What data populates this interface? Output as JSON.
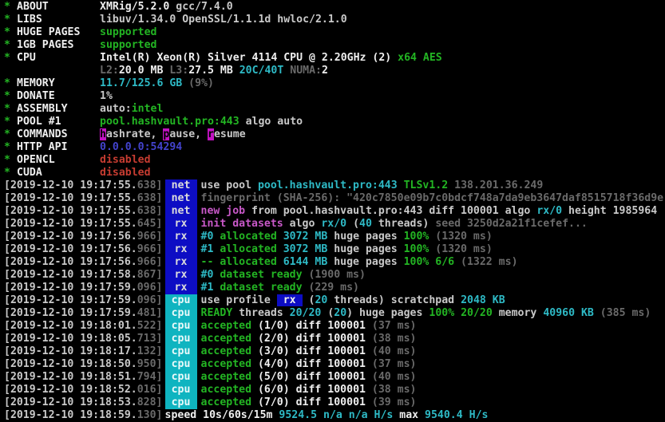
{
  "palette": {
    "bg": "#000000",
    "white": "#c9c9c9",
    "bright": "#efefef",
    "gray": "#6a6a6a",
    "green": "#23b523",
    "cyan": "#2ebac6",
    "magenta": "#c858c8",
    "red": "#c63c31",
    "blue": "#4343cd",
    "tagblue": "#0d0dc4",
    "tagcyan": "#0fb4c0",
    "keybg": "#c213c2"
  },
  "info_lines": [
    {
      "star": "*",
      "label": "ABOUT",
      "segs": [
        [
          "XMRig/5.2.0",
          "b"
        ],
        [
          " gcc/7.4.0",
          "w"
        ]
      ]
    },
    {
      "star": "*",
      "label": "LIBS",
      "segs": [
        [
          "libuv/1.34.0 OpenSSL/1.1.1d hwloc/2.1.0",
          "w"
        ]
      ]
    },
    {
      "star": "*",
      "label": "HUGE PAGES",
      "segs": [
        [
          "supported",
          "gr"
        ]
      ]
    },
    {
      "star": "*",
      "label": "1GB PAGES",
      "segs": [
        [
          "supported",
          "gr"
        ]
      ]
    },
    {
      "star": "*",
      "label": "CPU",
      "segs": [
        [
          "Intel(R) Xeon(R) Silver 4114 CPU @ 2.20GHz (2) ",
          "b"
        ],
        [
          "x64 AES",
          "gr"
        ]
      ]
    },
    {
      "star": "",
      "label": "",
      "segs": [
        [
          "L2:",
          "g"
        ],
        [
          "20.0 MB ",
          "b"
        ],
        [
          "L3:",
          "g"
        ],
        [
          "27.5 MB ",
          "b"
        ],
        [
          "20C/40T ",
          "c"
        ],
        [
          "NUMA:",
          "g"
        ],
        [
          "2",
          "b"
        ]
      ]
    },
    {
      "star": "*",
      "label": "MEMORY",
      "segs": [
        [
          "11.7/125.6 GB ",
          "c"
        ],
        [
          "(9%)",
          "g"
        ]
      ]
    },
    {
      "star": "*",
      "label": "DONATE",
      "segs": [
        [
          "1%",
          "w"
        ]
      ]
    },
    {
      "star": "*",
      "label": "ASSEMBLY",
      "segs": [
        [
          "auto:",
          "w"
        ],
        [
          "intel",
          "gr"
        ]
      ]
    },
    {
      "star": "*",
      "label": "POOL #1",
      "segs": [
        [
          "pool.hashvault.pro:443",
          "gr"
        ],
        [
          " algo auto",
          "w"
        ]
      ]
    },
    {
      "star": "*",
      "label": "COMMANDS",
      "segs": [
        [
          "h",
          "kbg"
        ],
        [
          "ashrate, ",
          "w"
        ],
        [
          "p",
          "kbg"
        ],
        [
          "ause, ",
          "w"
        ],
        [
          "r",
          "kbg"
        ],
        [
          "esume",
          "w"
        ]
      ]
    },
    {
      "star": "*",
      "label": "HTTP API",
      "segs": [
        [
          "0.0.0.0:54294",
          "bl"
        ]
      ]
    },
    {
      "star": "*",
      "label": "OPENCL",
      "segs": [
        [
          "disabled",
          "r"
        ]
      ]
    },
    {
      "star": "*",
      "label": "CUDA",
      "segs": [
        [
          "disabled",
          "r"
        ]
      ]
    }
  ],
  "log_lines": [
    {
      "time": "[2019-12-10 19:17:55.",
      "ms": "638]",
      "tag": "net",
      "tagc": "blue",
      "segs": [
        [
          "use pool ",
          "w"
        ],
        [
          "pool.hashvault.pro:443 ",
          "c"
        ],
        [
          "TLSv1.2 ",
          "gr"
        ],
        [
          "138.201.36.249",
          "g"
        ]
      ]
    },
    {
      "time": "[2019-12-10 19:17:55.",
      "ms": "638]",
      "tag": "net",
      "tagc": "blue",
      "segs": [
        [
          "fingerprint (SHA-256): \"420c7850e09b7c0bdcf748a7da9eb3647daf8515718f36d9e",
          "g"
        ]
      ]
    },
    {
      "time": "[2019-12-10 19:17:55.",
      "ms": "638]",
      "tag": "net",
      "tagc": "blue",
      "segs": [
        [
          "new job ",
          "m"
        ],
        [
          "from pool.hashvault.pro:443 diff 100001 algo ",
          "w"
        ],
        [
          "rx/0",
          "c"
        ],
        [
          " height 1985964",
          "w"
        ]
      ]
    },
    {
      "time": "[2019-12-10 19:17:55.",
      "ms": "645]",
      "tag": "rx",
      "tagc": "blue",
      "segs": [
        [
          "init datasets",
          "m"
        ],
        [
          " algo ",
          "w"
        ],
        [
          "rx/0",
          "c"
        ],
        [
          " (",
          "w"
        ],
        [
          "40",
          "c"
        ],
        [
          " threads) ",
          "w"
        ],
        [
          "seed 3250d2a21f1cefef...",
          "g"
        ]
      ]
    },
    {
      "time": "[2019-12-10 19:17:56.",
      "ms": "966]",
      "tag": "rx",
      "tagc": "blue",
      "segs": [
        [
          "#0",
          "c"
        ],
        [
          " allocated ",
          "gr"
        ],
        [
          "3072 MB",
          "c"
        ],
        [
          " huge pages ",
          "w"
        ],
        [
          "100%",
          "gr"
        ],
        [
          " (1320 ms)",
          "g"
        ]
      ]
    },
    {
      "time": "[2019-12-10 19:17:56.",
      "ms": "966]",
      "tag": "rx",
      "tagc": "blue",
      "segs": [
        [
          "#1",
          "c"
        ],
        [
          " allocated ",
          "gr"
        ],
        [
          "3072 MB",
          "c"
        ],
        [
          " huge pages ",
          "w"
        ],
        [
          "100%",
          "gr"
        ],
        [
          " (1320 ms)",
          "g"
        ]
      ]
    },
    {
      "time": "[2019-12-10 19:17:56.",
      "ms": "966]",
      "tag": "rx",
      "tagc": "blue",
      "segs": [
        [
          "-- allocated ",
          "gr"
        ],
        [
          "6144 MB",
          "c"
        ],
        [
          " huge pages ",
          "w"
        ],
        [
          "100% 6/6",
          "gr"
        ],
        [
          " (1322 ms)",
          "g"
        ]
      ]
    },
    {
      "time": "[2019-12-10 19:17:58.",
      "ms": "867]",
      "tag": "rx",
      "tagc": "blue",
      "segs": [
        [
          "#0",
          "c"
        ],
        [
          " dataset ready ",
          "gr"
        ],
        [
          "(1900 ms)",
          "g"
        ]
      ]
    },
    {
      "time": "[2019-12-10 19:17:59.",
      "ms": "096]",
      "tag": "rx",
      "tagc": "blue",
      "segs": [
        [
          "#1",
          "c"
        ],
        [
          " dataset ready ",
          "gr"
        ],
        [
          "(229 ms)",
          "g"
        ]
      ]
    },
    {
      "time": "[2019-12-10 19:17:59.",
      "ms": "096]",
      "tag": "cpu",
      "tagc": "cyan",
      "segs": [
        [
          "use profile ",
          "w"
        ],
        [
          " rx ",
          "box"
        ],
        [
          " (",
          "w"
        ],
        [
          "20",
          "c"
        ],
        [
          " threads) scratchpad ",
          "w"
        ],
        [
          "2048 KB",
          "c"
        ]
      ]
    },
    {
      "time": "[2019-12-10 19:17:59.",
      "ms": "481]",
      "tag": "cpu",
      "tagc": "cyan",
      "segs": [
        [
          "READY",
          "gr"
        ],
        [
          " threads ",
          "w"
        ],
        [
          "20/20",
          "c"
        ],
        [
          " (",
          "w"
        ],
        [
          "20",
          "c"
        ],
        [
          ") huge pages ",
          "w"
        ],
        [
          "100% 20/20",
          "gr"
        ],
        [
          " memory ",
          "w"
        ],
        [
          "40960 KB",
          "c"
        ],
        [
          " (385 ms)",
          "g"
        ]
      ]
    },
    {
      "time": "[2019-12-10 19:18:01.",
      "ms": "522]",
      "tag": "cpu",
      "tagc": "cyan",
      "segs": [
        [
          "accepted",
          "gr"
        ],
        [
          " (1/0) diff 100001 ",
          "b"
        ],
        [
          "(37 ms)",
          "g"
        ]
      ]
    },
    {
      "time": "[2019-12-10 19:18:05.",
      "ms": "713]",
      "tag": "cpu",
      "tagc": "cyan",
      "segs": [
        [
          "accepted",
          "gr"
        ],
        [
          " (2/0) diff 100001 ",
          "b"
        ],
        [
          "(38 ms)",
          "g"
        ]
      ]
    },
    {
      "time": "[2019-12-10 19:18:17.",
      "ms": "132]",
      "tag": "cpu",
      "tagc": "cyan",
      "segs": [
        [
          "accepted",
          "gr"
        ],
        [
          " (3/0) diff 100001 ",
          "b"
        ],
        [
          "(40 ms)",
          "g"
        ]
      ]
    },
    {
      "time": "[2019-12-10 19:18:50.",
      "ms": "950]",
      "tag": "cpu",
      "tagc": "cyan",
      "segs": [
        [
          "accepted",
          "gr"
        ],
        [
          " (4/0) diff 100001 ",
          "b"
        ],
        [
          "(37 ms)",
          "g"
        ]
      ]
    },
    {
      "time": "[2019-12-10 19:18:51.",
      "ms": "794]",
      "tag": "cpu",
      "tagc": "cyan",
      "segs": [
        [
          "accepted",
          "gr"
        ],
        [
          " (5/0) diff 100001 ",
          "b"
        ],
        [
          "(40 ms)",
          "g"
        ]
      ]
    },
    {
      "time": "[2019-12-10 19:18:52.",
      "ms": "016]",
      "tag": "cpu",
      "tagc": "cyan",
      "segs": [
        [
          "accepted",
          "gr"
        ],
        [
          " (6/0) diff 100001 ",
          "b"
        ],
        [
          "(38 ms)",
          "g"
        ]
      ]
    },
    {
      "time": "[2019-12-10 19:18:53.",
      "ms": "828]",
      "tag": "cpu",
      "tagc": "cyan",
      "segs": [
        [
          "accepted",
          "gr"
        ],
        [
          " (7/0) diff 100001 ",
          "b"
        ],
        [
          "(39 ms)",
          "g"
        ]
      ]
    },
    {
      "time": "[2019-12-10 19:18:59.",
      "ms": "130]",
      "tag": null,
      "tagc": null,
      "segs": [
        [
          "speed 10s/60s/15m ",
          "b"
        ],
        [
          "9524.5 n/a n/a H/s",
          "c"
        ],
        [
          " max ",
          "b"
        ],
        [
          "9540.4 H/s",
          "c"
        ]
      ]
    }
  ]
}
